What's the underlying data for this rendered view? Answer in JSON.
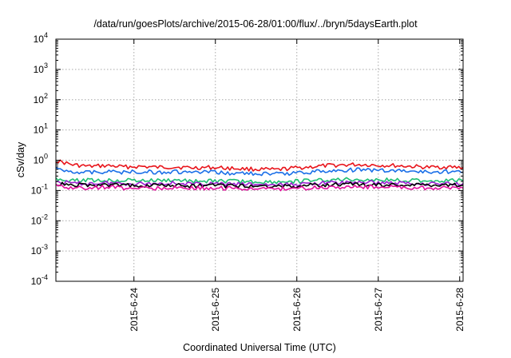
{
  "chart_data": {
    "type": "line",
    "title": "/data/run/goesPlots/archive/2015-06-28/01:00/flux/../bryn/5daysEarth.plot",
    "xlabel": "Coordinated Universal Time (UTC)",
    "ylabel": "cSv/day",
    "yscale": "log",
    "ylim": [
      0.0001,
      10000
    ],
    "xlim": [
      "2015-06-23T01:00",
      "2015-06-28T01:00"
    ],
    "x_ticks": [
      "2015-6-24",
      "2015-6-25",
      "2015-6-26",
      "2015-6-27",
      "2015-6-28"
    ],
    "y_ticks": [
      {
        "base": "10",
        "exp": "4"
      },
      {
        "base": "10",
        "exp": "3"
      },
      {
        "base": "10",
        "exp": "2"
      },
      {
        "base": "10",
        "exp": "1"
      },
      {
        "base": "10",
        "exp": "0"
      },
      {
        "base": "10",
        "exp": "-1"
      },
      {
        "base": "10",
        "exp": "-2"
      },
      {
        "base": "10",
        "exp": "-3"
      },
      {
        "base": "10",
        "exp": "-4"
      }
    ],
    "grid": true,
    "x": [
      "2015-06-23T01:00",
      "2015-06-23T06:00",
      "2015-06-23T11:00",
      "2015-06-23T16:00",
      "2015-06-23T21:00",
      "2015-06-24T02:00",
      "2015-06-24T07:00",
      "2015-06-24T12:00",
      "2015-06-24T17:00",
      "2015-06-24T22:00",
      "2015-06-25T03:00",
      "2015-06-25T08:00",
      "2015-06-25T13:00",
      "2015-06-25T18:00",
      "2015-06-25T23:00",
      "2015-06-26T04:00",
      "2015-06-26T09:00",
      "2015-06-26T14:00",
      "2015-06-26T19:00",
      "2015-06-27T00:00",
      "2015-06-27T05:00",
      "2015-06-27T10:00",
      "2015-06-27T15:00",
      "2015-06-27T20:00",
      "2015-06-28T01:00"
    ],
    "series": [
      {
        "color": "#e8141b",
        "values": [
          0.95,
          0.7,
          0.62,
          0.66,
          0.6,
          0.62,
          0.58,
          0.6,
          0.56,
          0.58,
          0.55,
          0.52,
          0.5,
          0.48,
          0.55,
          0.6,
          0.66,
          0.7,
          0.72,
          0.68,
          0.66,
          0.62,
          0.58,
          0.6,
          0.57
        ]
      },
      {
        "color": "#1a6fe8",
        "values": [
          0.52,
          0.42,
          0.4,
          0.42,
          0.4,
          0.42,
          0.4,
          0.41,
          0.39,
          0.4,
          0.38,
          0.37,
          0.36,
          0.35,
          0.38,
          0.41,
          0.44,
          0.47,
          0.48,
          0.46,
          0.45,
          0.43,
          0.4,
          0.42,
          0.4
        ]
      },
      {
        "color": "#1fbf73",
        "values": [
          0.25,
          0.21,
          0.22,
          0.21,
          0.22,
          0.21,
          0.21,
          0.22,
          0.2,
          0.21,
          0.2,
          0.2,
          0.19,
          0.19,
          0.2,
          0.21,
          0.22,
          0.23,
          0.23,
          0.22,
          0.22,
          0.21,
          0.21,
          0.21,
          0.21
        ]
      },
      {
        "color": "#9b1fd1",
        "values": [
          0.2,
          0.17,
          0.17,
          0.18,
          0.17,
          0.17,
          0.17,
          0.18,
          0.16,
          0.17,
          0.16,
          0.16,
          0.16,
          0.15,
          0.16,
          0.17,
          0.18,
          0.18,
          0.19,
          0.18,
          0.18,
          0.17,
          0.17,
          0.17,
          0.17
        ]
      },
      {
        "color": "#000000",
        "values": [
          0.17,
          0.15,
          0.15,
          0.15,
          0.15,
          0.15,
          0.15,
          0.15,
          0.14,
          0.15,
          0.14,
          0.14,
          0.14,
          0.14,
          0.14,
          0.15,
          0.15,
          0.16,
          0.16,
          0.15,
          0.15,
          0.15,
          0.15,
          0.15,
          0.15
        ]
      },
      {
        "color": "#e3109e",
        "values": [
          0.14,
          0.12,
          0.12,
          0.13,
          0.12,
          0.12,
          0.12,
          0.13,
          0.12,
          0.12,
          0.12,
          0.12,
          0.11,
          0.11,
          0.12,
          0.12,
          0.13,
          0.13,
          0.13,
          0.13,
          0.13,
          0.12,
          0.12,
          0.12,
          0.12
        ]
      }
    ]
  }
}
